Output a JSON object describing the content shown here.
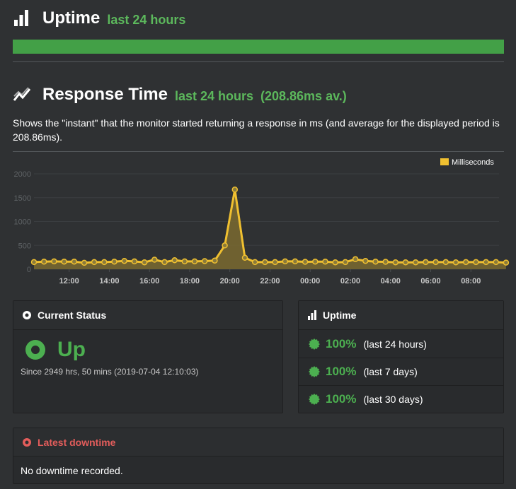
{
  "uptime_section": {
    "title": "Uptime",
    "subtitle": "last 24 hours"
  },
  "response_section": {
    "title": "Response Time",
    "subtitle": "last 24 hours",
    "average": "(208.86ms av.)",
    "description": "Shows the \"instant\" that the monitor started returning a response in ms (and average for the displayed period is 208.86ms)."
  },
  "chart_data": {
    "type": "area",
    "series": [
      {
        "name": "Milliseconds",
        "values": [
          150,
          160,
          165,
          160,
          160,
          135,
          150,
          150,
          160,
          175,
          165,
          145,
          200,
          150,
          190,
          165,
          165,
          170,
          180,
          500,
          1670,
          240,
          150,
          150,
          150,
          165,
          165,
          155,
          160,
          160,
          145,
          150,
          210,
          175,
          160,
          155,
          145,
          145,
          145,
          150,
          150,
          150,
          145,
          150,
          150,
          150,
          150,
          140
        ]
      }
    ],
    "x_start_hour": 10.25,
    "x_end_hour": 33.4,
    "x_step_hours": 0.5,
    "xticks": [
      "12:00",
      "14:00",
      "16:00",
      "18:00",
      "20:00",
      "22:00",
      "00:00",
      "02:00",
      "04:00",
      "06:00",
      "08:00"
    ],
    "yticks": [
      "0",
      "500",
      "1000",
      "1500",
      "2000"
    ],
    "ylim": [
      0,
      2000
    ],
    "legend": "top-right",
    "colors": {
      "line": "#f0c030",
      "fill": "#7a6a30"
    }
  },
  "current_status": {
    "title": "Current Status",
    "status": "Up",
    "since": "Since 2949 hrs, 50 mins (2019-07-04 12:10:03)"
  },
  "uptime_panel": {
    "title": "Uptime",
    "rows": [
      {
        "pct": "100%",
        "label": "(last 24 hours)"
      },
      {
        "pct": "100%",
        "label": "(last 7 days)"
      },
      {
        "pct": "100%",
        "label": "(last 30 days)"
      }
    ]
  },
  "downtime": {
    "title": "Latest downtime",
    "message": "No downtime recorded."
  },
  "colors": {
    "green": "#4caf50",
    "red": "#e35d5b",
    "background": "#2f3133",
    "panel": "#292b2d"
  }
}
